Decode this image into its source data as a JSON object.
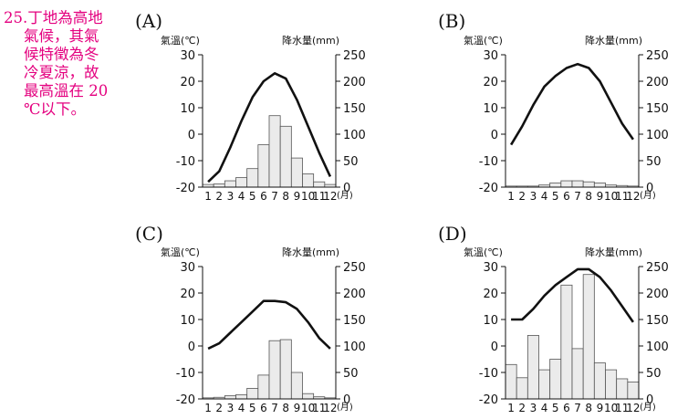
{
  "note": {
    "lines": [
      "25.丁地為高地",
      "氣候，其氣",
      "候特徵為冬",
      "冷夏涼，故",
      "最高溫在 20",
      "℃以下。"
    ]
  },
  "colors": {
    "note_text": "#e4007f",
    "bar_fill": "#ebebeb",
    "bar_stroke": "#555555",
    "line": "#111111"
  },
  "chart_data": [
    {
      "type": "bar+line",
      "title": "(A)",
      "ylabel_left": "氣溫(℃)",
      "ylabel_right": "降水量(mm)",
      "xlabel": "(月)",
      "categories": [
        "1",
        "2",
        "3",
        "4",
        "5",
        "6",
        "7",
        "8",
        "9",
        "10",
        "11",
        "12"
      ],
      "left_ticks": [
        "30",
        "20",
        "10",
        "0",
        "-10",
        "-20"
      ],
      "right_ticks": [
        "250",
        "200",
        "150",
        "100",
        "50",
        "0"
      ],
      "ylim_temp": [
        -20,
        30
      ],
      "ylim_precip": [
        0,
        250
      ],
      "temperature": [
        -18,
        -14,
        -5,
        5,
        14,
        20,
        23,
        21,
        13,
        3,
        -7,
        -16
      ],
      "precipitation": [
        5,
        6,
        12,
        18,
        35,
        80,
        135,
        115,
        55,
        25,
        10,
        5
      ]
    },
    {
      "type": "bar+line",
      "title": "(B)",
      "ylabel_left": "氣溫(℃)",
      "ylabel_right": "降水量(mm)",
      "xlabel": "(月)",
      "categories": [
        "1",
        "2",
        "3",
        "4",
        "5",
        "6",
        "7",
        "8",
        "9",
        "10",
        "11",
        "12"
      ],
      "left_ticks": [
        "30",
        "20",
        "10",
        "0",
        "-10",
        "-20"
      ],
      "right_ticks": [
        "250",
        "200",
        "150",
        "100",
        "50",
        "0"
      ],
      "ylim_temp": [
        -20,
        30
      ],
      "ylim_precip": [
        0,
        250
      ],
      "temperature": [
        -4,
        3,
        11,
        18,
        22,
        25,
        26.5,
        25,
        20,
        12,
        4,
        -2
      ],
      "precipitation": [
        2,
        2,
        2,
        4,
        8,
        12,
        12,
        10,
        8,
        4,
        3,
        2
      ]
    },
    {
      "type": "bar+line",
      "title": "(C)",
      "ylabel_left": "氣溫(℃)",
      "ylabel_right": "降水量(mm)",
      "xlabel": "(月)",
      "categories": [
        "1",
        "2",
        "3",
        "4",
        "5",
        "6",
        "7",
        "8",
        "9",
        "10",
        "11",
        "12"
      ],
      "left_ticks": [
        "30",
        "20",
        "10",
        "0",
        "-10",
        "-20"
      ],
      "right_ticks": [
        "250",
        "200",
        "150",
        "100",
        "50",
        "0"
      ],
      "ylim_temp": [
        -20,
        30
      ],
      "ylim_precip": [
        0,
        250
      ],
      "temperature": [
        -1,
        1,
        5,
        9,
        13,
        17,
        17,
        16.5,
        14,
        9,
        3,
        -1
      ],
      "precipitation": [
        2,
        3,
        6,
        8,
        20,
        45,
        110,
        112,
        50,
        10,
        4,
        2
      ]
    },
    {
      "type": "bar+line",
      "title": "(D)",
      "ylabel_left": "氣溫(℃)",
      "ylabel_right": "降水量(mm)",
      "xlabel": "(月)",
      "categories": [
        "1",
        "2",
        "3",
        "4",
        "5",
        "6",
        "7",
        "8",
        "9",
        "10",
        "11",
        "12"
      ],
      "left_ticks": [
        "30",
        "20",
        "10",
        "0",
        "-10",
        "-20"
      ],
      "right_ticks": [
        "250",
        "200",
        "150",
        "100",
        "50",
        "0"
      ],
      "ylim_temp": [
        -20,
        30
      ],
      "ylim_precip": [
        0,
        250
      ],
      "temperature": [
        10,
        10,
        14,
        19,
        23,
        26,
        29,
        29,
        26,
        21,
        15,
        9
      ],
      "precipitation": [
        65,
        40,
        120,
        55,
        75,
        215,
        95,
        235,
        68,
        55,
        38,
        32
      ]
    }
  ]
}
